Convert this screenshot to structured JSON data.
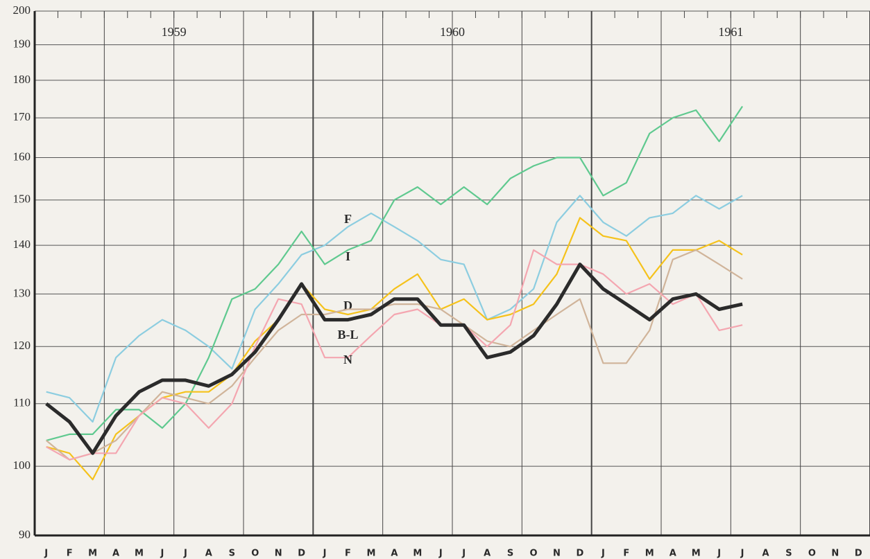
{
  "chart_data": {
    "type": "line",
    "groups": [
      "1959",
      "1960",
      "1961"
    ],
    "categories": [
      "J",
      "F",
      "M",
      "A",
      "M",
      "J",
      "J",
      "A",
      "S",
      "O",
      "N",
      "D",
      "J",
      "F",
      "M",
      "A",
      "M",
      "J",
      "J",
      "A",
      "S",
      "O",
      "N",
      "D",
      "J",
      "F",
      "M",
      "A",
      "M",
      "J",
      "J",
      "A",
      "S",
      "O",
      "N",
      "D"
    ],
    "log_scale": true,
    "grid": true,
    "ylim": [
      90,
      200
    ],
    "yticks": [
      90,
      100,
      110,
      120,
      130,
      140,
      150,
      160,
      170,
      180,
      190,
      200
    ],
    "series": [
      {
        "name": "F",
        "color": "#8ccde0",
        "values": [
          112,
          111,
          107,
          118,
          122,
          125,
          123,
          120,
          116,
          127,
          132,
          138,
          140,
          144,
          147,
          144,
          141,
          137,
          136,
          125,
          127,
          131,
          145,
          151,
          145,
          142,
          146,
          147,
          151,
          148,
          151,
          null,
          null,
          null,
          null,
          null
        ]
      },
      {
        "name": "I",
        "color": "#5fc98f",
        "values": [
          104,
          105,
          105,
          109,
          109,
          106,
          110,
          118,
          129,
          131,
          136,
          143,
          136,
          139,
          141,
          150,
          153,
          149,
          153,
          149,
          155,
          158,
          160,
          160,
          151,
          154,
          166,
          170,
          172,
          164,
          173,
          null,
          null,
          null,
          null,
          null
        ]
      },
      {
        "name": "D",
        "color": "#f5c21b",
        "values": [
          103,
          102,
          98,
          105,
          108,
          111,
          112,
          112,
          115,
          121,
          125,
          132,
          127,
          126,
          127,
          131,
          134,
          127,
          129,
          125,
          126,
          128,
          134,
          146,
          142,
          141,
          133,
          139,
          139,
          141,
          138,
          null,
          null,
          null,
          null,
          null
        ]
      },
      {
        "name": "B-L",
        "color": "#d0b49a",
        "values": [
          104,
          101,
          102,
          104,
          108,
          112,
          111,
          110,
          113,
          118,
          123,
          126,
          126,
          127,
          127,
          128,
          128,
          127,
          124,
          121,
          120,
          123,
          126,
          129,
          117,
          117,
          123,
          137,
          139,
          136,
          133,
          null,
          null,
          null,
          null,
          null
        ]
      },
      {
        "name": "N",
        "color": "#f4a6b0",
        "values": [
          103,
          101,
          102,
          102,
          108,
          111,
          110,
          106,
          110,
          120,
          129,
          128,
          118,
          118,
          122,
          126,
          127,
          124,
          124,
          120,
          124,
          139,
          136,
          136,
          134,
          130,
          132,
          128,
          130,
          123,
          124,
          null,
          null,
          null,
          null,
          null
        ]
      },
      {
        "color": "#2b2b2b",
        "values": [
          110,
          107,
          102,
          108,
          112,
          114,
          114,
          113,
          115,
          119,
          125,
          132,
          125,
          125,
          126,
          129,
          129,
          124,
          124,
          118,
          119,
          122,
          128,
          136,
          131,
          128,
          125,
          129,
          130,
          127,
          128,
          null,
          null,
          null,
          null,
          null
        ]
      }
    ]
  }
}
